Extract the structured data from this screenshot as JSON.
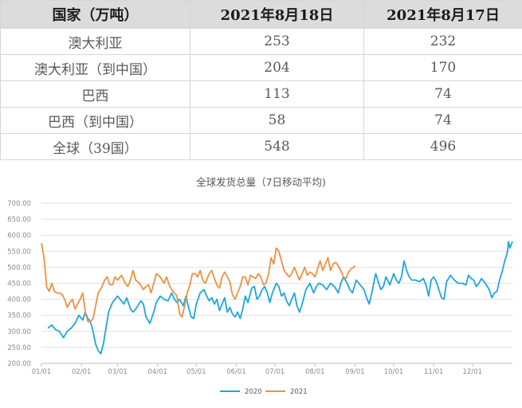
{
  "table": {
    "headers": [
      "国家（万吨）",
      "2021年8月18日",
      "2021年8月17日"
    ],
    "rows": [
      [
        "澳大利亚",
        "253",
        "232"
      ],
      [
        "澳大利亚（到中国）",
        "204",
        "170"
      ],
      [
        "巴西",
        "113",
        "74"
      ],
      [
        "巴西（到中国）",
        "58",
        "74"
      ],
      [
        "全球（39国）",
        "548",
        "496"
      ]
    ]
  },
  "chart_data": {
    "type": "line",
    "title": "全球发货总量（7日移动平均)",
    "xlabel": "",
    "ylabel": "",
    "ylim": [
      200,
      700
    ],
    "y_ticks": [
      "200.00",
      "250.00",
      "300.00",
      "350.00",
      "400.00",
      "450.00",
      "500.00",
      "550.00",
      "600.00",
      "650.00",
      "700.00"
    ],
    "x_ticks": [
      "01/01",
      "02/01",
      "03/01",
      "04/01",
      "05/01",
      "06/01",
      "07/01",
      "08/01",
      "09/01",
      "10/01",
      "11/01",
      "12/01"
    ],
    "x_tick_days": [
      1,
      32,
      60,
      91,
      121,
      152,
      182,
      213,
      244,
      274,
      305,
      335
    ],
    "x_range_days": [
      1,
      366
    ],
    "grid": true,
    "legend_position": "bottom",
    "series": [
      {
        "name": "2020",
        "color": "#1ea7dc",
        "points": [
          [
            6,
            310
          ],
          [
            9,
            320
          ],
          [
            12,
            305
          ],
          [
            15,
            300
          ],
          [
            18,
            280
          ],
          [
            21,
            300
          ],
          [
            24,
            310
          ],
          [
            27,
            325
          ],
          [
            30,
            350
          ],
          [
            33,
            335
          ],
          [
            35,
            360
          ],
          [
            37,
            340
          ],
          [
            39,
            330
          ],
          [
            41,
            300
          ],
          [
            43,
            260
          ],
          [
            45,
            240
          ],
          [
            47,
            230
          ],
          [
            49,
            260
          ],
          [
            51,
            310
          ],
          [
            53,
            360
          ],
          [
            56,
            390
          ],
          [
            60,
            410
          ],
          [
            62,
            400
          ],
          [
            65,
            385
          ],
          [
            67,
            405
          ],
          [
            70,
            370
          ],
          [
            72,
            360
          ],
          [
            75,
            375
          ],
          [
            78,
            395
          ],
          [
            80,
            385
          ],
          [
            82,
            345
          ],
          [
            85,
            325
          ],
          [
            88,
            360
          ],
          [
            90,
            390
          ],
          [
            93,
            410
          ],
          [
            96,
            400
          ],
          [
            99,
            395
          ],
          [
            102,
            420
          ],
          [
            104,
            400
          ],
          [
            106,
            390
          ],
          [
            108,
            400
          ],
          [
            111,
            380
          ],
          [
            113,
            410
          ],
          [
            115,
            375
          ],
          [
            117,
            345
          ],
          [
            119,
            340
          ],
          [
            121,
            385
          ],
          [
            124,
            420
          ],
          [
            127,
            430
          ],
          [
            129,
            410
          ],
          [
            131,
            395
          ],
          [
            133,
            405
          ],
          [
            135,
            385
          ],
          [
            137,
            400
          ],
          [
            139,
            365
          ],
          [
            141,
            385
          ],
          [
            143,
            405
          ],
          [
            145,
            360
          ],
          [
            147,
            375
          ],
          [
            149,
            355
          ],
          [
            151,
            345
          ],
          [
            153,
            360
          ],
          [
            155,
            340
          ],
          [
            157,
            370
          ],
          [
            159,
            410
          ],
          [
            161,
            390
          ],
          [
            164,
            435
          ],
          [
            166,
            440
          ],
          [
            168,
            400
          ],
          [
            170,
            410
          ],
          [
            172,
            430
          ],
          [
            174,
            440
          ],
          [
            176,
            420
          ],
          [
            178,
            390
          ],
          [
            180,
            420
          ],
          [
            183,
            450
          ],
          [
            185,
            440
          ],
          [
            187,
            410
          ],
          [
            189,
            420
          ],
          [
            191,
            395
          ],
          [
            193,
            380
          ],
          [
            195,
            400
          ],
          [
            197,
            420
          ],
          [
            199,
            380
          ],
          [
            201,
            360
          ],
          [
            203,
            385
          ],
          [
            206,
            430
          ],
          [
            209,
            450
          ],
          [
            212,
            420
          ],
          [
            214,
            440
          ],
          [
            216,
            450
          ],
          [
            219,
            445
          ],
          [
            222,
            430
          ],
          [
            225,
            450
          ],
          [
            228,
            440
          ],
          [
            231,
            420
          ],
          [
            233,
            450
          ],
          [
            235,
            470
          ],
          [
            238,
            450
          ],
          [
            240,
            430
          ],
          [
            242,
            420
          ],
          [
            245,
            460
          ],
          [
            248,
            445
          ],
          [
            251,
            430
          ],
          [
            253,
            405
          ],
          [
            255,
            385
          ],
          [
            257,
            420
          ],
          [
            260,
            480
          ],
          [
            262,
            455
          ],
          [
            264,
            430
          ],
          [
            266,
            440
          ],
          [
            268,
            470
          ],
          [
            271,
            445
          ],
          [
            274,
            480
          ],
          [
            276,
            460
          ],
          [
            278,
            450
          ],
          [
            280,
            470
          ],
          [
            282,
            520
          ],
          [
            284,
            490
          ],
          [
            286,
            470
          ],
          [
            288,
            460
          ],
          [
            291,
            460
          ],
          [
            294,
            455
          ],
          [
            297,
            465
          ],
          [
            299,
            445
          ],
          [
            301,
            410
          ],
          [
            303,
            460
          ],
          [
            305,
            470
          ],
          [
            307,
            455
          ],
          [
            309,
            430
          ],
          [
            311,
            405
          ],
          [
            313,
            400
          ],
          [
            315,
            455
          ],
          [
            318,
            475
          ],
          [
            321,
            460
          ],
          [
            324,
            450
          ],
          [
            327,
            450
          ],
          [
            330,
            445
          ],
          [
            332,
            475
          ],
          [
            334,
            465
          ],
          [
            336,
            460
          ],
          [
            338,
            440
          ],
          [
            340,
            450
          ],
          [
            342,
            465
          ],
          [
            345,
            450
          ],
          [
            348,
            430
          ],
          [
            350,
            405
          ],
          [
            352,
            420
          ],
          [
            354,
            425
          ],
          [
            356,
            460
          ],
          [
            358,
            485
          ],
          [
            360,
            520
          ],
          [
            362,
            545
          ],
          [
            363,
            580
          ],
          [
            364,
            560
          ],
          [
            366,
            580
          ]
        ]
      },
      {
        "name": "2021",
        "color": "#ee9142",
        "points": [
          [
            1,
            575
          ],
          [
            3,
            530
          ],
          [
            5,
            440
          ],
          [
            7,
            425
          ],
          [
            9,
            450
          ],
          [
            11,
            425
          ],
          [
            13,
            420
          ],
          [
            15,
            420
          ],
          [
            17,
            415
          ],
          [
            19,
            400
          ],
          [
            21,
            375
          ],
          [
            23,
            390
          ],
          [
            25,
            400
          ],
          [
            27,
            370
          ],
          [
            29,
            385
          ],
          [
            31,
            400
          ],
          [
            33,
            420
          ],
          [
            35,
            360
          ],
          [
            37,
            330
          ],
          [
            39,
            330
          ],
          [
            41,
            340
          ],
          [
            43,
            380
          ],
          [
            45,
            420
          ],
          [
            48,
            440
          ],
          [
            50,
            460
          ],
          [
            52,
            470
          ],
          [
            54,
            445
          ],
          [
            56,
            445
          ],
          [
            58,
            470
          ],
          [
            60,
            460
          ],
          [
            63,
            475
          ],
          [
            66,
            450
          ],
          [
            68,
            440
          ],
          [
            70,
            460
          ],
          [
            72,
            490
          ],
          [
            74,
            460
          ],
          [
            77,
            450
          ],
          [
            80,
            430
          ],
          [
            82,
            440
          ],
          [
            84,
            445
          ],
          [
            86,
            420
          ],
          [
            88,
            450
          ],
          [
            90,
            480
          ],
          [
            93,
            470
          ],
          [
            96,
            450
          ],
          [
            98,
            470
          ],
          [
            100,
            445
          ],
          [
            102,
            430
          ],
          [
            104,
            420
          ],
          [
            106,
            410
          ],
          [
            108,
            355
          ],
          [
            110,
            345
          ],
          [
            112,
            380
          ],
          [
            114,
            420
          ],
          [
            116,
            445
          ],
          [
            118,
            480
          ],
          [
            120,
            480
          ],
          [
            122,
            470
          ],
          [
            124,
            490
          ],
          [
            126,
            460
          ],
          [
            128,
            450
          ],
          [
            131,
            480
          ],
          [
            133,
            490
          ],
          [
            135,
            465
          ],
          [
            137,
            445
          ],
          [
            139,
            435
          ],
          [
            141,
            470
          ],
          [
            143,
            485
          ],
          [
            145,
            470
          ],
          [
            147,
            455
          ],
          [
            149,
            415
          ],
          [
            151,
            400
          ],
          [
            153,
            420
          ],
          [
            155,
            440
          ],
          [
            157,
            470
          ],
          [
            159,
            470
          ],
          [
            161,
            445
          ],
          [
            163,
            475
          ],
          [
            165,
            470
          ],
          [
            167,
            465
          ],
          [
            169,
            480
          ],
          [
            171,
            470
          ],
          [
            173,
            445
          ],
          [
            175,
            450
          ],
          [
            177,
            480
          ],
          [
            179,
            530
          ],
          [
            181,
            510
          ],
          [
            183,
            560
          ],
          [
            185,
            550
          ],
          [
            187,
            520
          ],
          [
            189,
            490
          ],
          [
            191,
            480
          ],
          [
            193,
            470
          ],
          [
            195,
            480
          ],
          [
            197,
            500
          ],
          [
            199,
            480
          ],
          [
            201,
            460
          ],
          [
            203,
            480
          ],
          [
            205,
            500
          ],
          [
            207,
            475
          ],
          [
            209,
            485
          ],
          [
            211,
            480
          ],
          [
            213,
            470
          ],
          [
            215,
            495
          ],
          [
            217,
            520
          ],
          [
            219,
            490
          ],
          [
            221,
            510
          ],
          [
            223,
            530
          ],
          [
            225,
            490
          ],
          [
            227,
            510
          ],
          [
            229,
            515
          ],
          [
            231,
            505
          ],
          [
            233,
            490
          ],
          [
            235,
            470
          ],
          [
            237,
            465
          ],
          [
            239,
            485
          ],
          [
            241,
            495
          ],
          [
            243,
            500
          ],
          [
            244,
            505
          ]
        ]
      }
    ]
  }
}
